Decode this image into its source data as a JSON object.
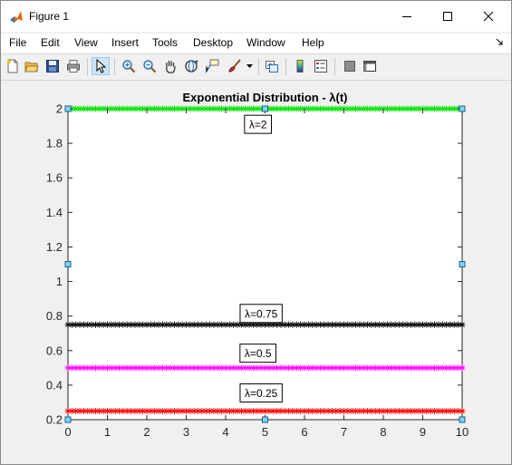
{
  "window": {
    "title": "Figure 1",
    "controls": {
      "minimize": "minimize",
      "maximize": "maximize",
      "close": "close"
    }
  },
  "menu": {
    "items": [
      "File",
      "Edit",
      "View",
      "Insert",
      "Tools",
      "Desktop",
      "Window",
      "Help"
    ]
  },
  "toolbar": {
    "icons": [
      "new-figure-icon",
      "open-file-icon",
      "save-icon",
      "print-icon",
      "pointer-icon",
      "zoom-in-icon",
      "zoom-out-icon",
      "pan-icon",
      "rotate-3d-icon",
      "data-cursor-icon",
      "brush-icon",
      "link-plot-icon",
      "colorbar-icon",
      "legend-icon",
      "hide-plot-tools-icon",
      "show-plot-tools-icon"
    ],
    "selected": "pointer-icon"
  },
  "chart_data": {
    "type": "line",
    "title": "Exponential Distribution - λ(t)",
    "xlabel": "",
    "ylabel": "",
    "xlim": [
      0,
      10
    ],
    "ylim": [
      0.2,
      2
    ],
    "xticks": [
      0,
      1,
      2,
      3,
      4,
      5,
      6,
      7,
      8,
      9,
      10
    ],
    "yticks": [
      0.2,
      0.4,
      0.6,
      0.8,
      1,
      1.2,
      1.4,
      1.6,
      1.8,
      2
    ],
    "xtick_labels": [
      "0",
      "1",
      "2",
      "3",
      "4",
      "5",
      "6",
      "7",
      "8",
      "9",
      "10"
    ],
    "ytick_labels": [
      "0.2",
      "0.4",
      "0.6",
      "0.8",
      "1",
      "1.2",
      "1.4",
      "1.6",
      "1.8",
      "2"
    ],
    "grid": false,
    "marker": "*",
    "series": [
      {
        "color": "#00e400",
        "x": [
          0,
          10
        ],
        "y": [
          2,
          2
        ]
      },
      {
        "color": "#000000",
        "x": [
          0,
          10
        ],
        "y": [
          0.75,
          0.75
        ]
      },
      {
        "color": "#ff00ff",
        "x": [
          0,
          10
        ],
        "y": [
          0.5,
          0.5
        ]
      },
      {
        "color": "#ff0000",
        "x": [
          0,
          10
        ],
        "y": [
          0.25,
          0.25
        ]
      }
    ],
    "annotations": [
      {
        "text": "λ=2",
        "x": 4.82,
        "y": 1.91
      },
      {
        "text": "λ=0.75",
        "x": 4.9,
        "y": 0.815
      },
      {
        "text": "λ=0.5",
        "x": 4.82,
        "y": 0.585
      },
      {
        "text": "λ=0.25",
        "x": 4.9,
        "y": 0.355
      }
    ],
    "selection_handles": [
      [
        0,
        2
      ],
      [
        5,
        2
      ],
      [
        10,
        2
      ],
      [
        0,
        1.1
      ],
      [
        10,
        1.1
      ],
      [
        0,
        0.2
      ],
      [
        5,
        0.2
      ],
      [
        10,
        0.2
      ]
    ]
  }
}
